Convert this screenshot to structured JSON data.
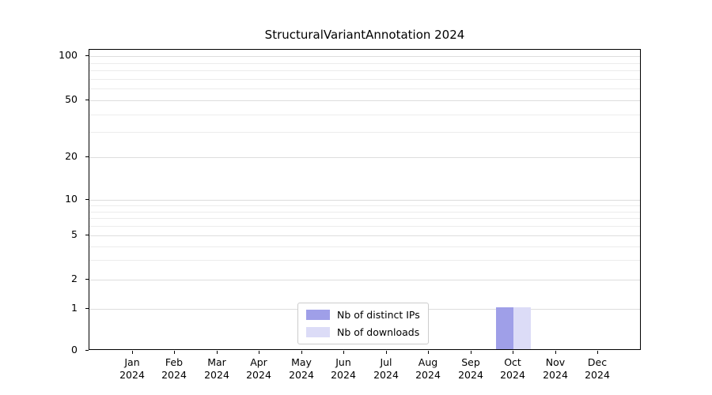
{
  "chart_data": {
    "type": "bar",
    "title": "StructuralVariantAnnotation 2024",
    "year_label": "2024",
    "categories": [
      "Jan",
      "Feb",
      "Mar",
      "Apr",
      "May",
      "Jun",
      "Jul",
      "Aug",
      "Sep",
      "Oct",
      "Nov",
      "Dec"
    ],
    "series": [
      {
        "name": "Nb of distinct IPs",
        "color": "#9f9fe8",
        "values": [
          0,
          0,
          0,
          0,
          0,
          0,
          0,
          0,
          0,
          1,
          0,
          0
        ]
      },
      {
        "name": "Nb of downloads",
        "color": "#dcdcf7",
        "values": [
          0,
          0,
          0,
          0,
          0,
          0,
          0,
          0,
          0,
          1,
          0,
          0
        ]
      }
    ],
    "y_ticks": [
      0,
      1,
      2,
      5,
      10,
      20,
      50,
      100
    ],
    "y_scale": "log-like",
    "ylim": [
      0,
      110
    ],
    "xlabel": "",
    "ylabel": "",
    "grid": "horizontal",
    "legend_position": "inside-bottom-center"
  }
}
